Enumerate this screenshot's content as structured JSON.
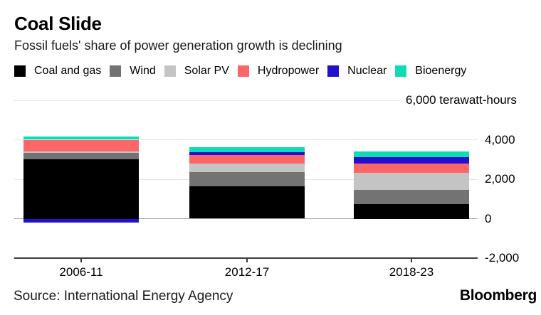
{
  "header": {
    "title": "Coal Slide",
    "subtitle": "Fossil fuels' share of power generation growth is declining"
  },
  "chart_data": {
    "type": "bar",
    "stacked": true,
    "title": "Coal Slide",
    "subtitle": "Fossil fuels' share of power generation growth is declining",
    "unit": "terawatt-hours",
    "categories": [
      "2006-11",
      "2012-17",
      "2018-23"
    ],
    "series": [
      {
        "name": "Coal and gas",
        "color": "#000000",
        "values": [
          3000,
          1650,
          750
        ]
      },
      {
        "name": "Wind",
        "color": "#737373",
        "values": [
          350,
          720,
          700
        ]
      },
      {
        "name": "Solar PV",
        "color": "#c4c4c4",
        "values": [
          50,
          420,
          870
        ]
      },
      {
        "name": "Hydropower",
        "color": "#fc6667",
        "values": [
          600,
          450,
          480
        ]
      },
      {
        "name": "Nuclear",
        "color": "#2210cc",
        "values": [
          -200,
          120,
          330
        ]
      },
      {
        "name": "Bioenergy",
        "color": "#0fdcb4",
        "values": [
          150,
          270,
          260
        ]
      }
    ],
    "y_ticks": [
      {
        "value": 6000,
        "label": "6,000 terawatt-hours"
      },
      {
        "value": 4000,
        "label": "4,000"
      },
      {
        "value": 2000,
        "label": "2,000"
      },
      {
        "value": 0,
        "label": "0"
      },
      {
        "value": -2000,
        "label": "-2,000"
      }
    ],
    "ylim": [
      -2000,
      6000
    ],
    "grid": true,
    "legend_position": "top"
  },
  "footer": {
    "source": "Source: International Energy Agency",
    "brand": "Bloomberg"
  }
}
